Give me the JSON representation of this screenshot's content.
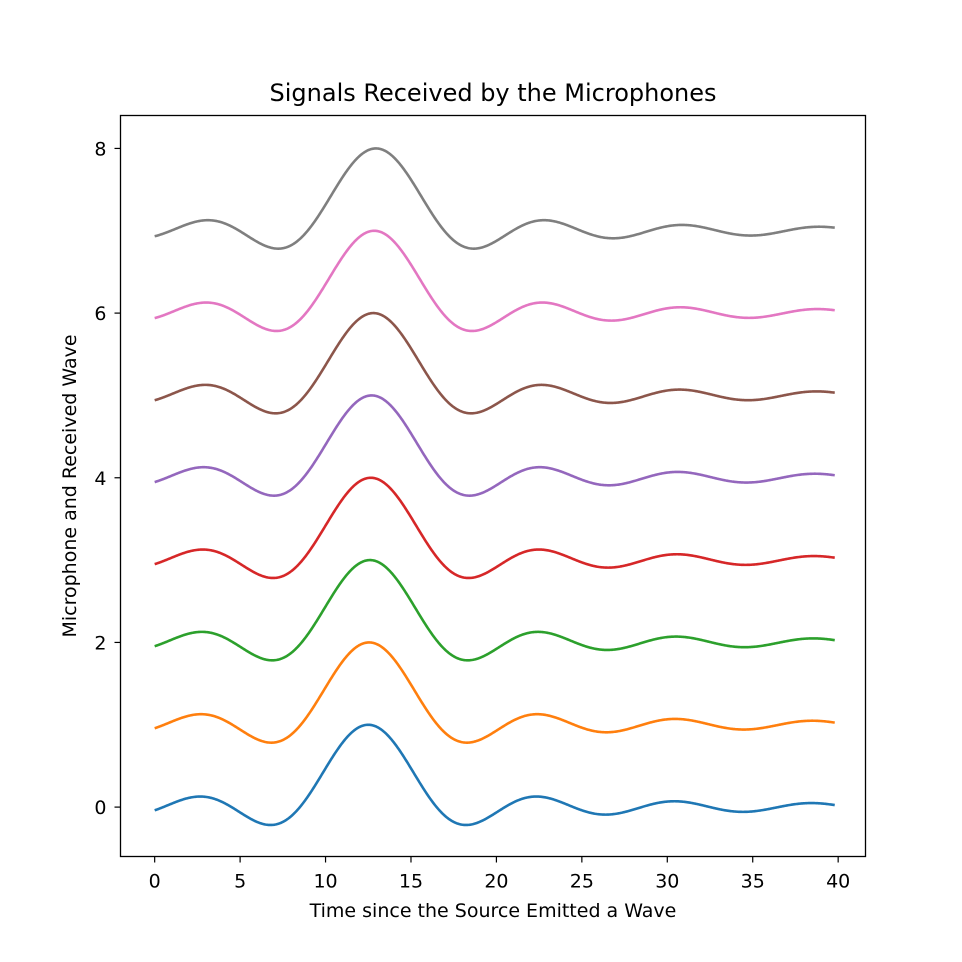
{
  "chart_data": {
    "type": "line",
    "title": "Signals Received by the Microphones",
    "xlabel": "Time since the Source Emitted a Wave",
    "ylabel": "Microphone and Received Wave",
    "xlim": [
      -2,
      41.6
    ],
    "ylim": [
      -0.6,
      8.4
    ],
    "xticks": [
      0,
      5,
      10,
      15,
      20,
      25,
      30,
      35,
      40
    ],
    "yticks": [
      0,
      2,
      4,
      6,
      8
    ],
    "grid": false,
    "legend": "none",
    "x_range": [
      0,
      39.8
    ],
    "series": [
      {
        "offset": 0,
        "peak_time": 12.5,
        "color": "#1f77b4"
      },
      {
        "offset": 1,
        "peak_time": 12.55,
        "color": "#ff7f0e"
      },
      {
        "offset": 2,
        "peak_time": 12.6,
        "color": "#2ca02c"
      },
      {
        "offset": 3,
        "peak_time": 12.65,
        "color": "#d62728"
      },
      {
        "offset": 4,
        "peak_time": 12.7,
        "color": "#9467bd"
      },
      {
        "offset": 5,
        "peak_time": 12.8,
        "color": "#8c564b"
      },
      {
        "offset": 6,
        "peak_time": 12.85,
        "color": "#e377c2"
      },
      {
        "offset": 7,
        "peak_time": 12.95,
        "color": "#7f7f7f"
      }
    ]
  }
}
